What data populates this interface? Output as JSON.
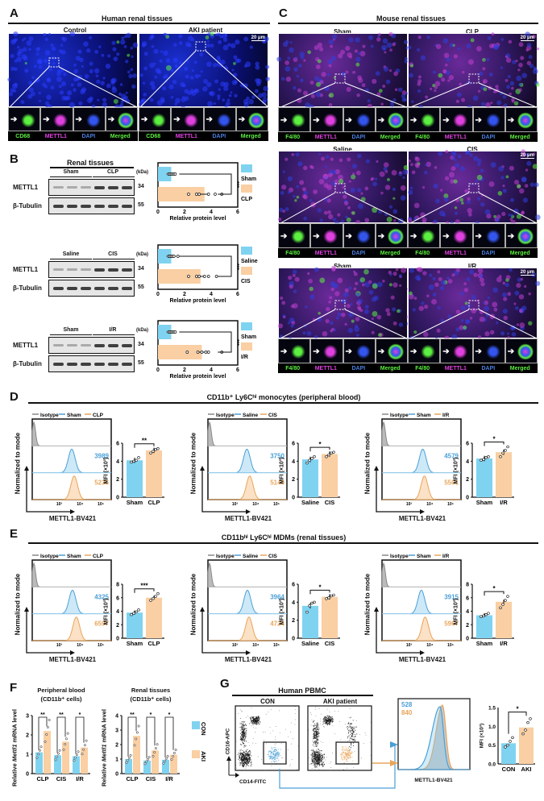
{
  "colors": {
    "sham": "#7fd3f0",
    "aki": "#f9cfa3",
    "sham_line": "#4a9fd6",
    "aki_line": "#e9a55a",
    "iso": "#888888",
    "green": "#5cf040",
    "magenta": "#e040e0",
    "blue": "#3355ee"
  },
  "panel_a": {
    "letter": "A",
    "title": "Human renal tissues",
    "scale_bar": "20 μm",
    "columns": [
      {
        "title": "Control"
      },
      {
        "title": "AKI patient"
      }
    ],
    "channels": [
      "CD68",
      "METTL1",
      "DAPI",
      "Merged"
    ]
  },
  "panel_c": {
    "letter": "C",
    "title": "Mouse renal tissues",
    "scale_bar": "20 μm",
    "rows": [
      {
        "columns": [
          "Sham",
          "CLP"
        ]
      },
      {
        "columns": [
          "Saline",
          "CIS"
        ]
      },
      {
        "columns": [
          "Sham",
          "I/R"
        ]
      }
    ],
    "channels": [
      "F4/80",
      "METTL1",
      "DAPI",
      "Merged"
    ]
  },
  "panel_b": {
    "letter": "B",
    "kda_label": "(kDa)",
    "xlabel": "Relative protein level",
    "xticks": [
      "0",
      "2",
      "4",
      "6"
    ],
    "xlim": [
      0,
      6
    ],
    "blots": [
      {
        "title": "Renal tissues",
        "groups": [
          "Sham",
          "CLP"
        ],
        "rows": [
          {
            "label": "METTL1",
            "kda": "34"
          },
          {
            "label": "β-Tubulin",
            "kda": "55"
          }
        ],
        "chart": {
          "categories": [
            "Sham",
            "CLP"
          ],
          "means": [
            1.0,
            3.5
          ],
          "points": [
            [
              0.8,
              0.9,
              1.0,
              1.1,
              1.2,
              1.3
            ],
            [
              2.3,
              2.9,
              3.1,
              3.8,
              4.3,
              4.8
            ]
          ],
          "sig": "***"
        }
      },
      {
        "title": "",
        "groups": [
          "Saline",
          "CIS"
        ],
        "rows": [
          {
            "label": "METTL1",
            "kda": "34"
          },
          {
            "label": "β-Tubulin",
            "kda": "55"
          }
        ],
        "chart": {
          "categories": [
            "Saline",
            "CIS"
          ],
          "means": [
            1.0,
            3.2
          ],
          "points": [
            [
              0.8,
              0.9,
              1.0,
              1.1,
              1.2,
              1.5
            ],
            [
              2.3,
              2.9,
              3.1,
              3.5,
              3.8,
              4.4
            ]
          ],
          "sig": "***"
        }
      },
      {
        "title": "",
        "groups": [
          "Sham",
          "I/R"
        ],
        "rows": [
          {
            "label": "METTL1",
            "kda": "34"
          },
          {
            "label": "β-Tubulin",
            "kda": "55"
          }
        ],
        "chart": {
          "categories": [
            "Sham",
            "I/R"
          ],
          "means": [
            1.0,
            3.3
          ],
          "points": [
            [
              0.8,
              0.9,
              1.0,
              1.1,
              1.2,
              1.3
            ],
            [
              2.2,
              3.0,
              3.3,
              3.6,
              3.8,
              4.8
            ]
          ],
          "sig": "***"
        }
      }
    ]
  },
  "panel_d": {
    "letter": "D",
    "title": "CD11b⁺ Ly6Cʰⁱ monocytes (peripheral blood)",
    "ylabel": "Normalized to mode",
    "xlabel": "METTL1-BV421",
    "xticks": [
      "10³",
      "10⁴",
      "10⁵"
    ],
    "bar_ylabel": "MFI (×10³)",
    "panels": [
      {
        "legend": [
          "Isotype",
          "Sham",
          "CLP"
        ],
        "mfi": [
          "3989",
          "5236"
        ],
        "bar": {
          "categories": [
            "Sham",
            "CLP"
          ],
          "means": [
            4.1,
            5.2
          ],
          "points": [
            [
              3.9,
              4.0,
              4.1,
              4.4
            ],
            [
              4.9,
              5.1,
              5.3,
              5.4
            ]
          ],
          "ylim": [
            0,
            6
          ],
          "yticks": [
            "0",
            "2",
            "4",
            "6"
          ],
          "sig": "**"
        }
      },
      {
        "legend": [
          "Isotype",
          "Saline",
          "CIS"
        ],
        "mfi": [
          "3750",
          "5140"
        ],
        "bar": {
          "categories": [
            "Saline",
            "CIS"
          ],
          "means": [
            4.2,
            4.8
          ],
          "points": [
            [
              3.8,
              4.1,
              4.3,
              4.5
            ],
            [
              4.5,
              4.7,
              4.9,
              5.0
            ]
          ],
          "ylim": [
            0,
            6
          ],
          "yticks": [
            "0",
            "2",
            "4",
            "6"
          ],
          "sig": "*"
        }
      },
      {
        "legend": [
          "Isotype",
          "Sham",
          "I/R"
        ],
        "mfi": [
          "4579",
          "5501"
        ],
        "bar": {
          "categories": [
            "Sham",
            "I/R"
          ],
          "means": [
            4.3,
            5.0
          ],
          "points": [
            [
              4.1,
              4.2,
              4.4,
              4.5
            ],
            [
              4.5,
              4.9,
              5.2,
              5.6
            ]
          ],
          "ylim": [
            0,
            6
          ],
          "yticks": [
            "0",
            "2",
            "4",
            "6"
          ],
          "sig": "*"
        }
      }
    ]
  },
  "panel_e": {
    "letter": "E",
    "title": "CD11bʰⁱ Ly6Cʰⁱ MDMs (renal tissues)",
    "ylabel": "Normalized to mode",
    "xlabel": "METTL1-BV421",
    "xticks": [
      "10³",
      "10⁴",
      "10⁵"
    ],
    "bar_ylabel": "MFI (×10³)",
    "panels": [
      {
        "legend": [
          "Isotype",
          "Sham",
          "CLP"
        ],
        "mfi": [
          "4325",
          "6597"
        ],
        "bar": {
          "categories": [
            "Sham",
            "CLP"
          ],
          "means": [
            3.8,
            6.0
          ],
          "points": [
            [
              3.5,
              3.7,
              3.9,
              4.2
            ],
            [
              5.6,
              5.9,
              6.2,
              6.6
            ]
          ],
          "ylim": [
            0,
            8
          ],
          "yticks": [
            "0",
            "2",
            "4",
            "6",
            "8"
          ],
          "sig": "***"
        }
      },
      {
        "legend": [
          "Isotype",
          "Saline",
          "CIS"
        ],
        "mfi": [
          "3964",
          "4724"
        ],
        "bar": {
          "categories": [
            "Saline",
            "CIS"
          ],
          "means": [
            3.6,
            4.6
          ],
          "points": [
            [
              2.9,
              3.6,
              3.9,
              4.0
            ],
            [
              4.4,
              4.5,
              4.7,
              4.8
            ]
          ],
          "ylim": [
            0,
            6
          ],
          "yticks": [
            "0",
            "2",
            "4",
            "6"
          ],
          "sig": "*"
        }
      },
      {
        "legend": [
          "Isotype",
          "Sham",
          "I/R"
        ],
        "mfi": [
          "3915",
          "5967"
        ],
        "bar": {
          "categories": [
            "Sham",
            "I/R"
          ],
          "means": [
            3.4,
            5.4
          ],
          "points": [
            [
              3.2,
              3.3,
              3.5,
              3.7
            ],
            [
              4.5,
              5.0,
              5.6,
              6.2
            ]
          ],
          "ylim": [
            0,
            8
          ],
          "yticks": [
            "0",
            "2",
            "4",
            "6",
            "8"
          ],
          "sig": "*"
        }
      }
    ]
  },
  "panel_f": {
    "letter": "F",
    "ylabel_pre": "Relative ",
    "ylabel_gene": "Mettl1",
    "ylabel_post": " mRNA level",
    "legend": [
      "CON",
      "AKI"
    ],
    "charts": [
      {
        "title1": "Peripheral blood",
        "title2": "(CD11b⁺ cells)",
        "categories": [
          "CLP",
          "CIS",
          "I/R"
        ],
        "ylim": [
          0,
          3
        ],
        "yticks": [
          "0",
          "1",
          "2",
          "3"
        ],
        "series": [
          {
            "name": "CON",
            "values": [
              1.1,
              0.95,
              0.9
            ]
          },
          {
            "name": "AKI",
            "values": [
              2.2,
              1.65,
              1.35
            ]
          }
        ],
        "sig": [
          "**",
          "**",
          "*"
        ]
      },
      {
        "title1": "Renal tissues",
        "title2": "(CD11b⁺ cells)",
        "categories": [
          "CLP",
          "CIS",
          "I/R"
        ],
        "ylim": [
          0,
          4
        ],
        "yticks": [
          "0",
          "1",
          "2",
          "3",
          "4"
        ],
        "series": [
          {
            "name": "CON",
            "values": [
              1.0,
              0.9,
              0.95
            ]
          },
          {
            "name": "AKI",
            "values": [
              2.6,
              1.6,
              1.3
            ]
          }
        ],
        "sig": [
          "**",
          "*",
          "*"
        ]
      }
    ]
  },
  "panel_g": {
    "letter": "G",
    "title": "Human PBMC",
    "columns": [
      "CON",
      "AKI patient"
    ],
    "ylabel": "CD16-APC",
    "xlabel": "CD14-FITC",
    "hist_xlabel": "METTL1-BV421",
    "mfi": [
      "528",
      "840"
    ],
    "bar": {
      "categories": [
        "CON",
        "AKI"
      ],
      "means": [
        0.55,
        0.97
      ],
      "points": [
        [
          0.45,
          0.5,
          0.6,
          0.7
        ],
        [
          0.8,
          0.9,
          1.1,
          1.2
        ]
      ],
      "ylim": [
        0,
        1.5
      ],
      "yticks": [
        "0.0",
        "0.5",
        "1.0",
        "1.5"
      ],
      "ylabel": "MFI (×10³)",
      "sig": "*"
    }
  }
}
